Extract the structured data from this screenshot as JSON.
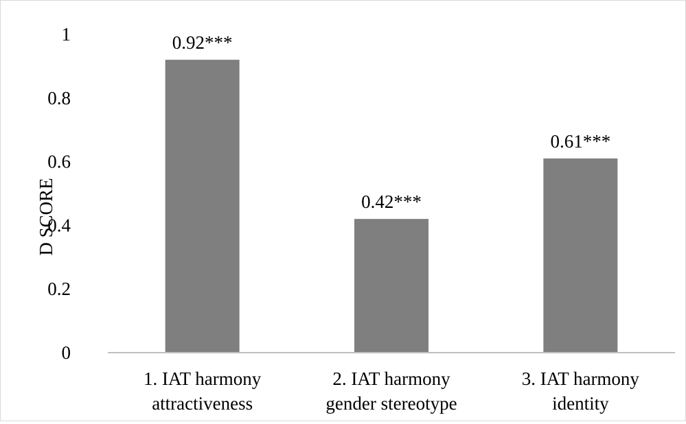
{
  "chart_data": {
    "type": "bar",
    "categories": [
      [
        "1. IAT harmony",
        "attractiveness"
      ],
      [
        "2. IAT harmony",
        "gender stereotype"
      ],
      [
        "3. IAT harmony",
        "identity"
      ]
    ],
    "values": [
      0.92,
      0.42,
      0.61
    ],
    "data_labels": [
      "0.92***",
      "0.42***",
      "0.61***"
    ],
    "ylabel": "D SCORE",
    "ylim": [
      0,
      1
    ],
    "yticks": [
      0,
      0.2,
      0.4,
      0.6,
      0.8,
      1
    ],
    "ytick_labels": [
      "0",
      "0.2",
      "0.4",
      "0.6",
      "0.8",
      "1"
    ],
    "grid": false,
    "legend": "none",
    "colors": {
      "bar": "#7f7f7f",
      "axis": "#bfbfbf",
      "frame": "#d9d9d9"
    }
  }
}
